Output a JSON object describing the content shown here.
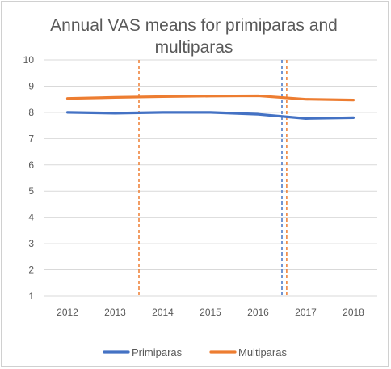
{
  "chart_data": {
    "type": "line",
    "title_lines": [
      "Annual VAS means for primiparas and",
      "multiparas"
    ],
    "xlabel": "",
    "ylabel": "",
    "categories": [
      "2012",
      "2013",
      "2014",
      "2015",
      "2016",
      "2017",
      "2018"
    ],
    "ylim": [
      1,
      10
    ],
    "yticks": [
      "1",
      "2",
      "3",
      "4",
      "5",
      "6",
      "7",
      "8",
      "9",
      "10"
    ],
    "grid": "horizontal",
    "legend_position": "bottom",
    "series": [
      {
        "name": "Primiparas",
        "color": "#4472c4",
        "values": [
          8.0,
          7.97,
          8.0,
          8.0,
          7.93,
          7.77,
          7.8
        ]
      },
      {
        "name": "Multiparas",
        "color": "#ed7d31",
        "values": [
          8.53,
          8.57,
          8.6,
          8.62,
          8.63,
          8.5,
          8.47
        ]
      }
    ],
    "reference_lines": [
      {
        "x": 2013.5,
        "color": "#ed7d31",
        "style": "dashed"
      },
      {
        "x": 2016.5,
        "color": "#4472c4",
        "style": "dashed"
      },
      {
        "x": 2016.6,
        "color": "#ed7d31",
        "style": "dashed"
      }
    ]
  }
}
